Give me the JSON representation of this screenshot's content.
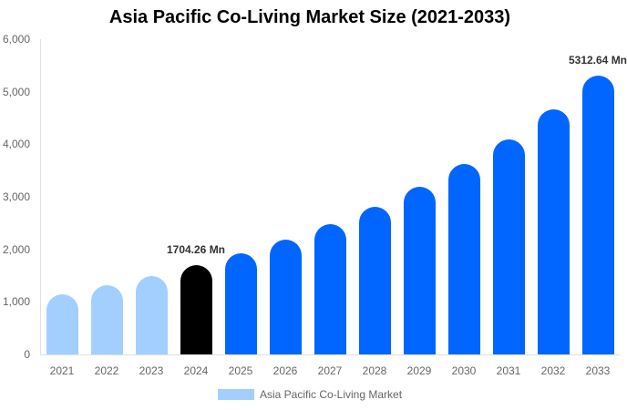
{
  "chart_data": {
    "type": "bar",
    "title": "Asia Pacific Co-Living Market Size (2021-2033)",
    "xlabel": "",
    "ylabel": "",
    "ylim": [
      0,
      6000
    ],
    "yticks": [
      "0",
      "1,000",
      "2,000",
      "3,000",
      "4,000",
      "5,000",
      "6,000"
    ],
    "grid": false,
    "legend_position": "bottom",
    "categories": [
      "2021",
      "2022",
      "2023",
      "2024",
      "2025",
      "2026",
      "2027",
      "2028",
      "2029",
      "2030",
      "2031",
      "2032",
      "2033"
    ],
    "series": [
      {
        "name": "Asia Pacific Co-Living Market",
        "values": [
          1140,
          1315,
          1490,
          1704.26,
          1925,
          2180,
          2480,
          2810,
          3190,
          3620,
          4100,
          4660,
          5312.64
        ]
      }
    ],
    "annotations": [
      {
        "category": "2024",
        "text": "1704.26 Mn"
      },
      {
        "category": "2033",
        "text": "5312.64 Mn"
      }
    ],
    "colors": {
      "historical": "#a3cfff",
      "base_year": "#000000",
      "forecast": "#0066ff"
    }
  }
}
